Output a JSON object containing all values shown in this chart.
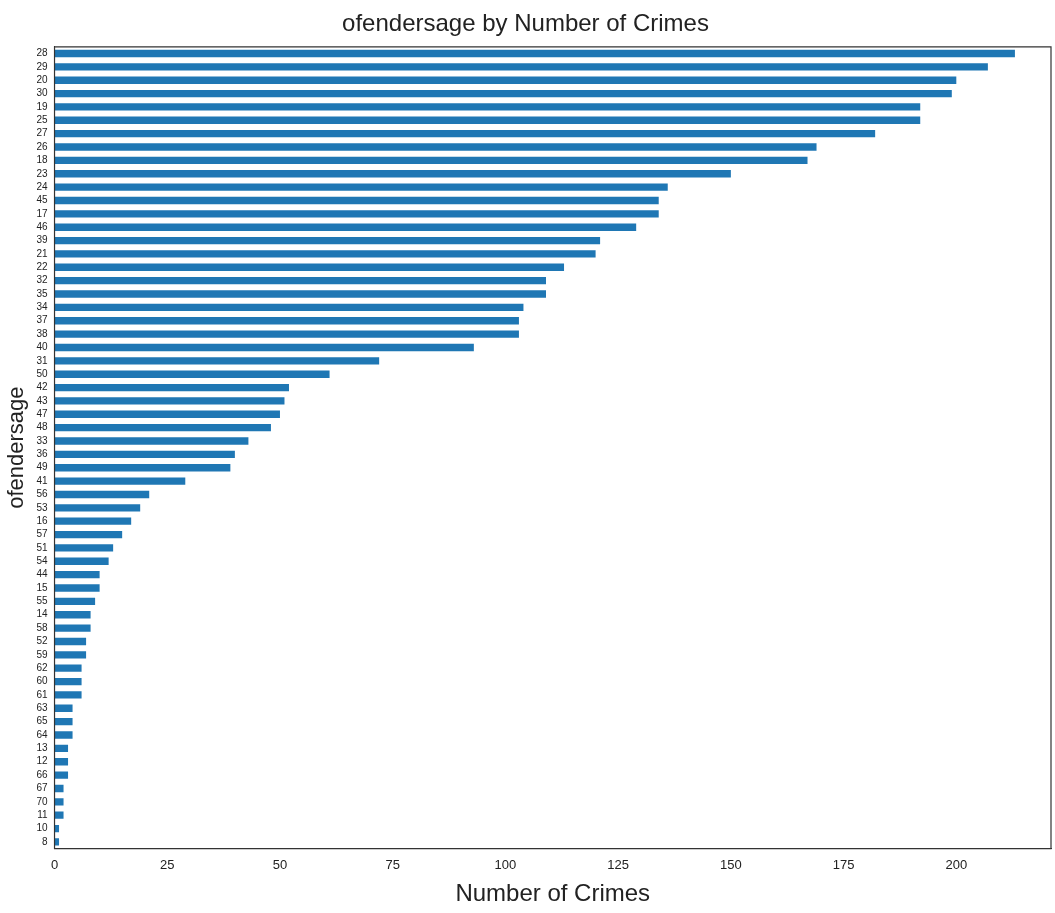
{
  "chart_data": {
    "type": "bar",
    "orientation": "horizontal",
    "title": "ofendersage by Number of Crimes",
    "xlabel": "Number of Crimes",
    "ylabel": "ofendersage",
    "categories": [
      "28",
      "29",
      "20",
      "30",
      "19",
      "25",
      "27",
      "26",
      "18",
      "23",
      "24",
      "45",
      "17",
      "46",
      "39",
      "21",
      "22",
      "32",
      "35",
      "34",
      "37",
      "38",
      "40",
      "31",
      "50",
      "42",
      "43",
      "47",
      "48",
      "33",
      "36",
      "49",
      "41",
      "56",
      "53",
      "16",
      "57",
      "51",
      "54",
      "44",
      "15",
      "55",
      "14",
      "58",
      "52",
      "59",
      "62",
      "60",
      "61",
      "63",
      "65",
      "64",
      "13",
      "12",
      "66",
      "67",
      "70",
      "11",
      "10",
      "8"
    ],
    "values": [
      213,
      207,
      200,
      199,
      192,
      192,
      182,
      169,
      167,
      150,
      136,
      134,
      134,
      129,
      121,
      120,
      113,
      109,
      109,
      104,
      103,
      103,
      93,
      72,
      61,
      52,
      51,
      50,
      48,
      43,
      40,
      39,
      29,
      21,
      19,
      17,
      15,
      13,
      12,
      10,
      10,
      9,
      8,
      8,
      7,
      7,
      6,
      6,
      6,
      4,
      4,
      4,
      3,
      3,
      3,
      2,
      2,
      2,
      1,
      1
    ],
    "color": "#1f77b4",
    "xlim": [
      0,
      221
    ],
    "xticks": [
      0,
      25,
      50,
      75,
      100,
      125,
      150,
      175,
      200
    ],
    "grid": false,
    "legend": false
  }
}
